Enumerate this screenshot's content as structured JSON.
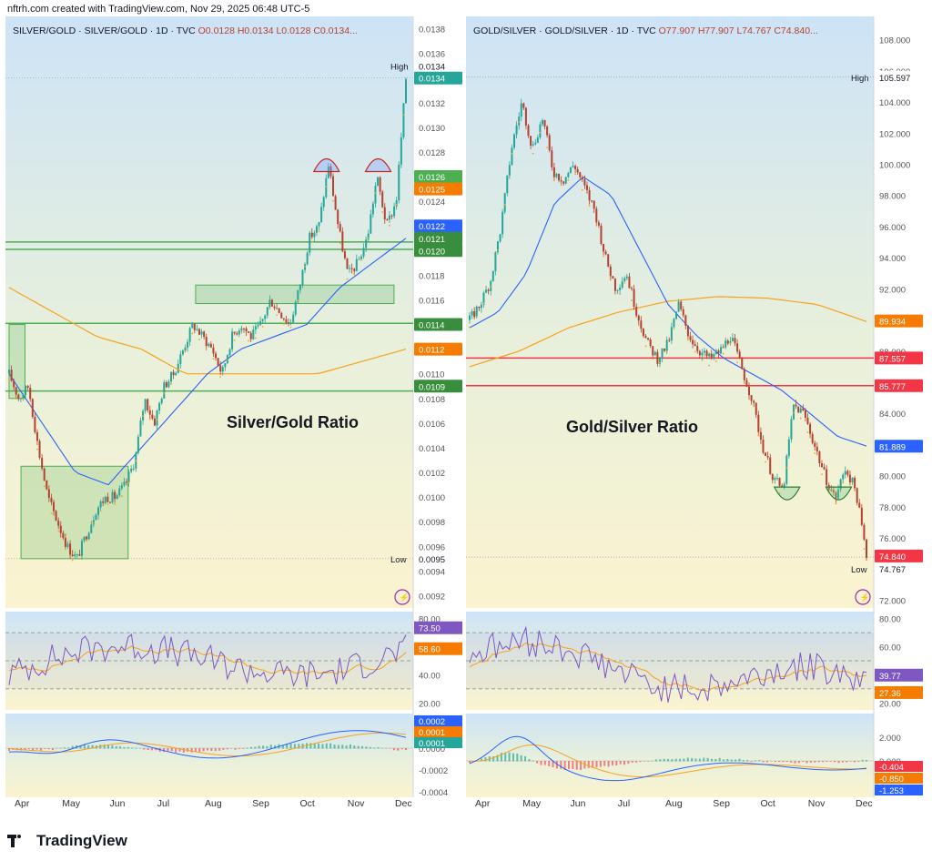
{
  "header": {
    "credit": "nftrh.com created with TradingView.com, Nov 29, 2025 06:48 UTC-5"
  },
  "footer": {
    "brand": "TradingView"
  },
  "colors": {
    "up": "#26a69a",
    "down": "#b5412f",
    "ma_blue": "#2962ff",
    "ma_orange": "#f7a21b",
    "rsi": "#7e57c2",
    "hline_green": "#4caf50",
    "hline_red": "#f23645",
    "gray_axis": "#787b86"
  },
  "chart_data": [
    {
      "id": "left",
      "type": "candlestick",
      "legend": {
        "symbol": "SILVER/GOLD · SILVER/GOLD · 1D · TVC",
        "o": "O0.0128",
        "h": "H0.0134",
        "l": "L0.0128",
        "c": "C0.0134..."
      },
      "title": "Silver/Gold Ratio",
      "months": [
        "Apr",
        "May",
        "Jun",
        "Jul",
        "Aug",
        "Sep",
        "Oct",
        "Nov",
        "Dec"
      ],
      "ylim": [
        0.0091,
        0.0139
      ],
      "yticks": [
        "0.0138",
        "0.0136",
        "0.0134",
        "0.0132",
        "0.0130",
        "0.0128",
        "0.0126",
        "0.0124",
        "0.0122",
        "0.0120",
        "0.0118",
        "0.0116",
        "0.0114",
        "0.0112",
        "0.0110",
        "0.0108",
        "0.0106",
        "0.0104",
        "0.0102",
        "0.0100",
        "0.0098",
        "0.0096",
        "0.0094",
        "0.0092"
      ],
      "key_prices": [
        0.011,
        0.0108,
        0.0109,
        0.0104,
        0.01,
        0.0098,
        0.0096,
        0.0095,
        0.0097,
        0.0099,
        0.01,
        0.01,
        0.0101,
        0.0103,
        0.0108,
        0.0106,
        0.0109,
        0.011,
        0.0112,
        0.0114,
        0.0113,
        0.0112,
        0.011,
        0.0113,
        0.0114,
        0.0113,
        0.0114,
        0.0116,
        0.0115,
        0.0114,
        0.0117,
        0.0121,
        0.0122,
        0.0127,
        0.0122,
        0.0118,
        0.0119,
        0.0121,
        0.0126,
        0.0122,
        0.0124,
        0.0134
      ],
      "ma_blue_key": [
        0.011,
        0.0106,
        0.0102,
        0.0101,
        0.0104,
        0.0107,
        0.011,
        0.0112,
        0.0113,
        0.0114,
        0.0117,
        0.0119,
        0.0121
      ],
      "ma_orange_key": [
        0.0117,
        0.0115,
        0.0113,
        0.0112,
        0.011,
        0.011,
        0.011,
        0.011,
        0.0111,
        0.0112
      ],
      "hlines": [
        0.01207,
        0.01201,
        0.01141,
        0.01086
      ],
      "boxes": [
        {
          "t0": 0.0,
          "t1": 0.04,
          "p0": 0.0114,
          "p1": 0.0108
        },
        {
          "t0": 0.03,
          "t1": 0.3,
          "p0": 0.01025,
          "p1": 0.0095
        },
        {
          "t0": 0.47,
          "t1": 0.97,
          "p0": 0.01172,
          "p1": 0.01157
        }
      ],
      "arcs": [
        {
          "t": 0.8,
          "p": 0.0127
        },
        {
          "t": 0.93,
          "p": 0.0127
        }
      ],
      "price_tags": [
        {
          "label": "High",
          "value": "0.0134",
          "kind": "high"
        },
        {
          "value": "0.0134",
          "kind": "last"
        },
        {
          "value": "0.0126",
          "kind": "green"
        },
        {
          "value": "0.0125",
          "kind": "orange"
        },
        {
          "value": "0.0122",
          "kind": "blue"
        },
        {
          "value": "0.0121",
          "kind": "greenline"
        },
        {
          "value": "0.0120",
          "kind": "greenline"
        },
        {
          "value": "0.0114",
          "kind": "greenline"
        },
        {
          "value": "0.0112",
          "kind": "orange"
        },
        {
          "value": "0.0109",
          "kind": "greenline"
        },
        {
          "label": "Low",
          "value": "0.0095",
          "kind": "low"
        }
      ],
      "rsi": {
        "ticks": [
          "80.00",
          "40.00",
          "20.00"
        ],
        "tags": [
          "73.50",
          "58.60"
        ],
        "ylim": [
          15,
          85
        ]
      },
      "macd": {
        "ticks": [
          "0.0000",
          "-0.0002",
          "-0.0004"
        ],
        "tags": [
          "0.0002",
          "0.0001",
          "0.0001"
        ]
      }
    },
    {
      "id": "right",
      "type": "candlestick",
      "legend": {
        "symbol": "GOLD/SILVER · GOLD/SILVER · 1D · TVC",
        "o": "O77.907",
        "h": "H77.907",
        "l": "L74.767",
        "c": "C74.840..."
      },
      "title": "Gold/Silver Ratio",
      "months": [
        "Apr",
        "May",
        "Jun",
        "Jul",
        "Aug",
        "Sep",
        "Oct",
        "Nov",
        "Dec"
      ],
      "ylim": [
        71.5,
        109.5
      ],
      "yticks": [
        "108.000",
        "106.000",
        "104.000",
        "102.000",
        "100.000",
        "98.000",
        "96.000",
        "94.000",
        "92.000",
        "90.000",
        "88.000",
        "86.000",
        "84.000",
        "82.000",
        "80.000",
        "78.000",
        "76.000",
        "74.000",
        "72.000"
      ],
      "key_prices": [
        90.0,
        91.0,
        92.5,
        96.0,
        101.0,
        104.0,
        101.0,
        103.0,
        99.5,
        99.0,
        100.0,
        98.5,
        97.0,
        94.0,
        92.0,
        93.0,
        90.5,
        88.5,
        87.5,
        88.5,
        91.0,
        89.0,
        88.0,
        87.5,
        88.0,
        89.0,
        87.0,
        85.0,
        82.0,
        80.0,
        79.0,
        84.5,
        84.0,
        82.0,
        80.0,
        78.5,
        80.5,
        79.0,
        74.8
      ],
      "ma_blue_key": [
        89.5,
        90.5,
        93.0,
        97.5,
        99.2,
        98.0,
        94.5,
        91.0,
        89.0,
        87.5,
        86.5,
        85.5,
        84.0,
        82.5,
        81.9
      ],
      "ma_orange_key": [
        87.0,
        88.0,
        89.5,
        90.5,
        91.2,
        91.5,
        91.4,
        91.0,
        89.9
      ],
      "hlines": [
        87.557,
        85.777
      ],
      "arcs": [
        {
          "t": 0.8,
          "p": 78.8
        },
        {
          "t": 0.93,
          "p": 78.8
        }
      ],
      "price_tags": [
        {
          "label": "High",
          "value": "105.597",
          "kind": "high"
        },
        {
          "value": "89.934",
          "kind": "orange"
        },
        {
          "value": "87.557",
          "kind": "redline"
        },
        {
          "value": "85.777",
          "kind": "redline"
        },
        {
          "value": "81.889",
          "kind": "blue"
        },
        {
          "value": "74.840",
          "kind": "last"
        },
        {
          "label": "Low",
          "value": "74.767",
          "kind": "low"
        }
      ],
      "rsi": {
        "ticks": [
          "80.00",
          "60.00",
          "20.00"
        ],
        "tags": [
          "39.77",
          "27.36"
        ],
        "ylim": [
          15,
          85
        ]
      },
      "macd": {
        "ticks": [
          "2.000",
          "0.000"
        ],
        "tags": [
          "-0.404",
          "-0.850",
          "-1.253"
        ]
      }
    }
  ]
}
